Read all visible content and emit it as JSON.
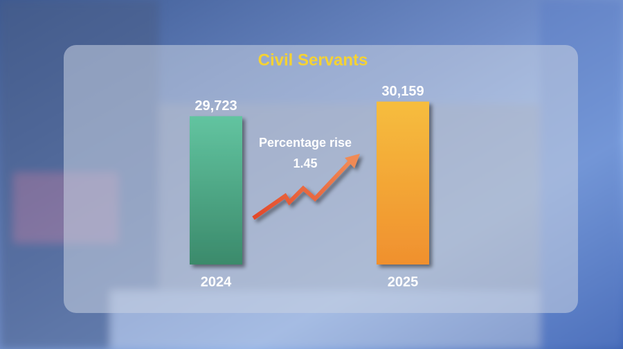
{
  "chart_data": {
    "type": "bar",
    "title": "Civil Servants",
    "categories": [
      "2024",
      "2025"
    ],
    "values": [
      29723,
      30159
    ],
    "value_labels": [
      "29,723",
      "30,159"
    ],
    "colors": [
      [
        "#62c4a0",
        "#3b8a6b"
      ],
      [
        "#f6bd3e",
        "#f0902e"
      ]
    ],
    "ylim": [
      25300,
      30400
    ],
    "annotation": "Percentage rise",
    "percentage_rise": 1.45
  }
}
